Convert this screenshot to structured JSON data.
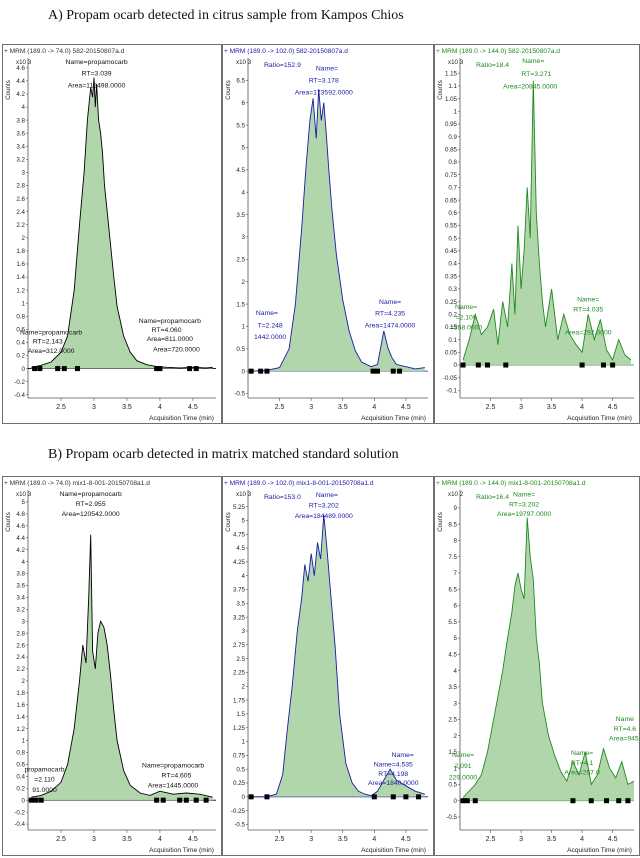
{
  "sections": [
    {
      "label": "A)  Propam ocarb detected in citrus sample from Kampos Chios"
    },
    {
      "label": "B)  Propam ocarb detected in matrix matched standard solution"
    }
  ],
  "chart_data": [
    {
      "type": "area",
      "section": "A",
      "column": 1,
      "title": "+ MRM (189.0 -> 74.0) 582-20150807a.d",
      "ylabel": "Counts",
      "yexp": "x10 3",
      "xlabel": "Acquisition Time (min)",
      "ylim": [
        -0.45,
        4.75
      ],
      "xlim": [
        2.0,
        4.85
      ],
      "yticks": [
        "-0.4",
        "-0.2",
        "0",
        "0.2",
        "0.4",
        "0.6",
        "0.8",
        "1",
        "1.2",
        "1.4",
        "1.6",
        "1.8",
        "2",
        "2.2",
        "2.4",
        "2.6",
        "2.8",
        "3",
        "3.2",
        "3.4",
        "3.6",
        "3.8",
        "4",
        "4.2",
        "4.4",
        "4.6"
      ],
      "xticks": [
        "2.5",
        "3",
        "3.5",
        "4",
        "4.5"
      ],
      "color": "#000000",
      "fill": "#a8d2a2",
      "x": [
        2.05,
        2.2,
        2.35,
        2.5,
        2.6,
        2.7,
        2.78,
        2.85,
        2.9,
        2.95,
        2.98,
        3.0,
        3.02,
        3.04,
        3.07,
        3.1,
        3.13,
        3.16,
        3.2,
        3.25,
        3.3,
        3.35,
        3.45,
        3.55,
        3.65,
        3.8,
        3.95,
        4.1,
        4.3,
        4.5,
        4.7,
        4.8
      ],
      "y": [
        0.02,
        0.05,
        0.1,
        0.25,
        0.5,
        1.2,
        2.2,
        3.0,
        3.8,
        4.3,
        4.15,
        4.45,
        4.0,
        4.35,
        3.8,
        3.6,
        3.3,
        2.8,
        2.4,
        1.9,
        1.4,
        0.95,
        0.5,
        0.25,
        0.12,
        0.06,
        0.03,
        0.02,
        0.01,
        0.02,
        0.01,
        0.02
      ],
      "annotations": [
        {
          "text": "Name=propamocarb",
          "x": 3.04,
          "y": 4.66
        },
        {
          "text": "RT=3.039",
          "x": 3.04,
          "y": 4.48
        },
        {
          "text": "Area=112498.0000",
          "x": 3.04,
          "y": 4.3
        },
        {
          "text": "Name=propamocarb",
          "x": 2.35,
          "y": 0.52
        },
        {
          "text": "RT=2.143",
          "x": 2.3,
          "y": 0.38
        },
        {
          "text": "Area=312.0000",
          "x": 2.35,
          "y": 0.24
        },
        {
          "text": "Name=propamocarb",
          "x": 4.15,
          "y": 0.7
        },
        {
          "text": "RT=4.060",
          "x": 4.1,
          "y": 0.56
        },
        {
          "text": "Area=811.0000",
          "x": 4.15,
          "y": 0.42
        },
        {
          "text": "Area=720.0000",
          "x": 4.25,
          "y": 0.26
        }
      ],
      "markers": [
        2.1,
        2.18,
        2.45,
        2.55,
        2.75,
        3.95,
        4.0,
        4.45,
        4.55
      ]
    },
    {
      "type": "area",
      "section": "A",
      "column": 2,
      "title": "+ MRM (189.0 -> 102.0) 582-20150807a.d",
      "ylabel": "Counts",
      "yexp": "x10 3",
      "ratio": "Ratio=152.9",
      "xlabel": "Acquisition Time (min)",
      "ylim": [
        -0.6,
        7.0
      ],
      "xlim": [
        2.0,
        4.85
      ],
      "yticks": [
        "-0.5",
        "0",
        "0.5",
        "1",
        "1.5",
        "2",
        "2.5",
        "3",
        "3.5",
        "4",
        "4.5",
        "5",
        "5.5",
        "6",
        "6.5"
      ],
      "xticks": [
        "2.5",
        "3",
        "3.5",
        "4",
        "4.5"
      ],
      "color": "#1a1aa8",
      "fill": "#a8d2a2",
      "x": [
        2.05,
        2.3,
        2.5,
        2.65,
        2.75,
        2.85,
        2.92,
        2.98,
        3.03,
        3.08,
        3.12,
        3.16,
        3.2,
        3.24,
        3.28,
        3.33,
        3.4,
        3.5,
        3.6,
        3.7,
        3.8,
        3.95,
        4.05,
        4.15,
        4.22,
        4.28,
        4.35,
        4.5,
        4.65,
        4.8
      ],
      "y": [
        0.0,
        0.02,
        0.08,
        0.5,
        1.5,
        3.2,
        4.6,
        5.6,
        6.1,
        5.2,
        6.3,
        5.6,
        6.0,
        5.3,
        4.5,
        3.6,
        2.6,
        1.6,
        0.9,
        0.45,
        0.2,
        0.1,
        0.15,
        0.9,
        0.5,
        0.3,
        0.15,
        0.1,
        0.05,
        0.08
      ],
      "annotations": [
        {
          "text": "Name=",
          "x": 3.25,
          "y": 6.72
        },
        {
          "text": "RT=3.178",
          "x": 3.2,
          "y": 6.45
        },
        {
          "text": "Area=173592.0000",
          "x": 3.2,
          "y": 6.18
        },
        {
          "text": "Name=",
          "x": 2.3,
          "y": 1.25
        },
        {
          "text": "T=2.248",
          "x": 2.35,
          "y": 0.98
        },
        {
          "text": "1442.0000",
          "x": 2.35,
          "y": 0.72
        },
        {
          "text": "Name=",
          "x": 4.25,
          "y": 1.5
        },
        {
          "text": "RT=4.235",
          "x": 4.25,
          "y": 1.24
        },
        {
          "text": "Area=1474.0000",
          "x": 4.25,
          "y": 0.98
        }
      ],
      "markers": [
        2.05,
        2.2,
        2.3,
        3.98,
        4.05,
        4.3,
        4.4
      ]
    },
    {
      "type": "area",
      "section": "A",
      "column": 3,
      "title": "+ MRM (189.0 -> 144.0) 582-20150807a.d",
      "ylabel": "Counts",
      "yexp": "x10 3",
      "ratio": "Ratio=18.4",
      "xlabel": "Acquisition Time (min)",
      "ylim": [
        -0.13,
        1.21
      ],
      "xlim": [
        2.0,
        4.85
      ],
      "yticks": [
        "-0.1",
        "-0.05",
        "0",
        "0.05",
        "0.1",
        "0.15",
        "0.2",
        "0.25",
        "0.3",
        "0.35",
        "0.4",
        "0.45",
        "0.5",
        "0.55",
        "0.6",
        "0.65",
        "0.7",
        "0.75",
        "0.8",
        "0.85",
        "0.9",
        "0.95",
        "1",
        "1.05",
        "1.1",
        "1.15"
      ],
      "xticks": [
        "2.5",
        "3",
        "3.5",
        "4",
        "4.5"
      ],
      "color": "#1f8a1f",
      "fill": "#a8d2a2",
      "x": [
        2.05,
        2.15,
        2.25,
        2.35,
        2.45,
        2.55,
        2.62,
        2.7,
        2.78,
        2.85,
        2.9,
        2.95,
        3.0,
        3.05,
        3.1,
        3.15,
        3.2,
        3.25,
        3.3,
        3.35,
        3.4,
        3.5,
        3.6,
        3.7,
        3.8,
        3.9,
        4.0,
        4.1,
        4.2,
        4.3,
        4.4,
        4.5,
        4.6,
        4.7,
        4.8
      ],
      "y": [
        0.02,
        0.1,
        0.2,
        0.12,
        0.15,
        0.22,
        0.08,
        0.25,
        0.15,
        0.4,
        0.2,
        0.55,
        0.3,
        0.45,
        0.7,
        0.5,
        1.12,
        0.6,
        0.4,
        0.25,
        0.15,
        0.3,
        0.1,
        0.2,
        0.12,
        0.08,
        0.05,
        0.2,
        0.1,
        0.18,
        0.06,
        0.02,
        0.1,
        0.04,
        0.02
      ],
      "annotations": [
        {
          "text": "Name=",
          "x": 3.2,
          "y": 1.19
        },
        {
          "text": "RT=3.271",
          "x": 3.25,
          "y": 1.14
        },
        {
          "text": "Area=20845.0000",
          "x": 3.15,
          "y": 1.09
        },
        {
          "text": "Name=",
          "x": 2.1,
          "y": 0.22
        },
        {
          "text": "=2.109",
          "x": 2.1,
          "y": 0.18
        },
        {
          "text": "=358.0000",
          "x": 2.1,
          "y": 0.14
        },
        {
          "text": "Name=",
          "x": 4.1,
          "y": 0.25
        },
        {
          "text": "RT=4.035",
          "x": 4.1,
          "y": 0.21
        },
        {
          "text": "Area=292.0000",
          "x": 4.1,
          "y": 0.12
        }
      ],
      "markers": [
        2.05,
        2.3,
        2.45,
        2.75,
        4.0,
        4.35,
        4.5
      ]
    },
    {
      "type": "area",
      "section": "B",
      "column": 1,
      "title": "+ MRM (189.0 -> 74.0) mix1-8-001-20150708a1.d",
      "ylabel": "Counts",
      "yexp": "x10 3",
      "xlabel": "Acquisition Time (min)",
      "ylim": [
        -0.5,
        5.2
      ],
      "xlim": [
        2.0,
        4.85
      ],
      "yticks": [
        "-0.4",
        "-0.2",
        "0",
        "0.2",
        "0.4",
        "0.6",
        "0.8",
        "1",
        "1.2",
        "1.4",
        "1.6",
        "1.8",
        "2",
        "2.2",
        "2.4",
        "2.6",
        "2.8",
        "3",
        "3.2",
        "3.4",
        "3.6",
        "3.8",
        "4",
        "4.2",
        "4.4",
        "4.6",
        "4.8",
        "5"
      ],
      "xticks": [
        "2.5",
        "3",
        "3.5",
        "4",
        "4.5"
      ],
      "color": "#000000",
      "fill": "#a8d2a2",
      "x": [
        2.05,
        2.2,
        2.35,
        2.5,
        2.6,
        2.7,
        2.78,
        2.83,
        2.88,
        2.92,
        2.95,
        2.98,
        3.02,
        3.06,
        3.1,
        3.15,
        3.2,
        3.25,
        3.3,
        3.35,
        3.45,
        3.55,
        3.7,
        3.85,
        4.0,
        4.2,
        4.4,
        4.6,
        4.8
      ],
      "y": [
        0.05,
        0.08,
        0.15,
        0.3,
        0.6,
        1.2,
        2.0,
        2.6,
        2.3,
        3.4,
        4.45,
        2.5,
        2.2,
        2.8,
        3.0,
        2.9,
        2.6,
        2.1,
        1.5,
        1.0,
        0.5,
        0.25,
        0.12,
        0.08,
        0.15,
        0.1,
        0.12,
        0.1,
        0.05
      ],
      "annotations": [
        {
          "text": "Name=propamocarb",
          "x": 2.95,
          "y": 5.1
        },
        {
          "text": "RT=2.955",
          "x": 2.95,
          "y": 4.93
        },
        {
          "text": "Area=120542.0000",
          "x": 2.95,
          "y": 4.76
        },
        {
          "text": "propamocarb",
          "x": 2.25,
          "y": 0.48
        },
        {
          "text": "=2.110",
          "x": 2.25,
          "y": 0.31
        },
        {
          "text": "91.0000",
          "x": 2.25,
          "y": 0.14
        },
        {
          "text": "Name=propamocarb",
          "x": 4.2,
          "y": 0.55
        },
        {
          "text": "RT=4.605",
          "x": 4.25,
          "y": 0.38
        },
        {
          "text": "Area=1445.0000",
          "x": 4.2,
          "y": 0.21
        }
      ],
      "markers": [
        2.05,
        2.12,
        2.2,
        3.95,
        4.05,
        4.3,
        4.4,
        4.55,
        4.7
      ]
    },
    {
      "type": "area",
      "section": "B",
      "column": 2,
      "title": "+ MRM (189.0 -> 102.0) mix1-8-001-20150708a1.d",
      "ylabel": "Counts",
      "yexp": "x10 3",
      "ratio": "Ratio=153.0",
      "xlabel": "Acquisition Time (min)",
      "ylim": [
        -0.6,
        5.55
      ],
      "xlim": [
        2.0,
        4.85
      ],
      "yticks": [
        "-0.5",
        "-0.25",
        "0",
        "0.25",
        "0.5",
        "0.75",
        "1",
        "1.25",
        "1.5",
        "1.75",
        "2",
        "2.25",
        "2.5",
        "2.75",
        "3",
        "3.25",
        "3.5",
        "3.75",
        "4",
        "4.25",
        "4.5",
        "4.75",
        "5",
        "5.25"
      ],
      "xticks": [
        "2.5",
        "3",
        "3.5",
        "4",
        "4.5"
      ],
      "color": "#1a1aa8",
      "fill": "#a8d2a2",
      "x": [
        2.05,
        2.3,
        2.45,
        2.55,
        2.62,
        2.7,
        2.78,
        2.85,
        2.9,
        2.95,
        3.0,
        3.05,
        3.1,
        3.15,
        3.2,
        3.25,
        3.3,
        3.38,
        3.45,
        3.55,
        3.65,
        3.75,
        3.85,
        3.95,
        4.05,
        4.15,
        4.25,
        4.35,
        4.5,
        4.65,
        4.8
      ],
      "y": [
        0.0,
        0.0,
        0.05,
        0.4,
        1.2,
        2.0,
        3.0,
        3.6,
        4.2,
        3.9,
        4.4,
        4.0,
        4.6,
        4.3,
        5.1,
        4.5,
        3.8,
        2.7,
        1.5,
        0.6,
        0.25,
        0.1,
        0.05,
        0.02,
        0.1,
        0.3,
        0.5,
        0.3,
        0.2,
        0.1,
        0.05
      ],
      "annotations": [
        {
          "text": "Name=",
          "x": 3.25,
          "y": 5.42
        },
        {
          "text": "RT=3.202",
          "x": 3.2,
          "y": 5.23
        },
        {
          "text": "Area=184489.0000",
          "x": 3.2,
          "y": 5.04
        },
        {
          "text": "Name=",
          "x": 4.45,
          "y": 0.72
        },
        {
          "text": "Name=4.535",
          "x": 4.3,
          "y": 0.55
        },
        {
          "text": "RT=4.198",
          "x": 4.3,
          "y": 0.38
        },
        {
          "text": "Area=1840.0000",
          "x": 4.3,
          "y": 0.21
        }
      ],
      "markers": [
        2.05,
        2.3,
        4.0,
        4.3,
        4.5,
        4.7
      ]
    },
    {
      "type": "area",
      "section": "B",
      "column": 3,
      "title": "+ MRM (189.0 -> 144.0) mix1-8-001-20150708a1.d",
      "ylabel": "Counts",
      "yexp": "x10 2",
      "ratio": "Ratio=16.4",
      "xlabel": "Acquisition Time (min)",
      "ylim": [
        -0.9,
        9.55
      ],
      "xlim": [
        2.0,
        4.85
      ],
      "yticks": [
        "-0.5",
        "0",
        "0.5",
        "1",
        "1.5",
        "2",
        "2.5",
        "3",
        "3.5",
        "4",
        "4.5",
        "5",
        "5.5",
        "6",
        "6.5",
        "7",
        "7.5",
        "8",
        "8.5",
        "9"
      ],
      "xticks": [
        "2.5",
        "3",
        "3.5",
        "4",
        "4.5"
      ],
      "color": "#1f8a1f",
      "fill": "#a8d2a2",
      "x": [
        2.05,
        2.15,
        2.25,
        2.35,
        2.45,
        2.55,
        2.62,
        2.7,
        2.78,
        2.85,
        2.9,
        2.95,
        3.0,
        3.05,
        3.1,
        3.15,
        3.2,
        3.25,
        3.3,
        3.35,
        3.45,
        3.55,
        3.65,
        3.75,
        3.85,
        3.95,
        4.05,
        4.15,
        4.25,
        4.35,
        4.45,
        4.55,
        4.65,
        4.75,
        4.85
      ],
      "y": [
        0.1,
        0.3,
        0.5,
        0.8,
        1.5,
        2.5,
        3.2,
        4.0,
        5.0,
        5.8,
        6.6,
        7.0,
        6.5,
        6.2,
        8.7,
        7.5,
        6.8,
        5.0,
        4.2,
        3.0,
        2.0,
        1.4,
        0.9,
        0.6,
        1.2,
        0.8,
        1.5,
        0.5,
        0.8,
        1.6,
        1.0,
        0.7,
        1.2,
        0.5,
        0.6
      ],
      "annotations": [
        {
          "text": "Name=",
          "x": 3.05,
          "y": 9.35
        },
        {
          "text": "RT=3.202",
          "x": 3.05,
          "y": 9.05
        },
        {
          "text": "Area=19797.0000",
          "x": 3.05,
          "y": 8.75
        },
        {
          "text": "Name=",
          "x": 2.05,
          "y": 1.35
        },
        {
          "text": "2.091",
          "x": 2.05,
          "y": 1.0
        },
        {
          "text": "229.0000",
          "x": 2.05,
          "y": 0.65
        },
        {
          "text": "Name",
          "x": 4.7,
          "y": 2.45
        },
        {
          "text": "RT=4.6",
          "x": 4.7,
          "y": 2.15
        },
        {
          "text": "Area=945.",
          "x": 4.7,
          "y": 1.85
        },
        {
          "text": "Name=",
          "x": 4.0,
          "y": 1.4
        },
        {
          "text": "RT=4.1",
          "x": 4.0,
          "y": 1.1
        },
        {
          "text": "Area=257.0",
          "x": 4.0,
          "y": 0.8
        }
      ],
      "markers": [
        2.05,
        2.12,
        2.25,
        3.85,
        4.15,
        4.4,
        4.6,
        4.75
      ]
    }
  ]
}
